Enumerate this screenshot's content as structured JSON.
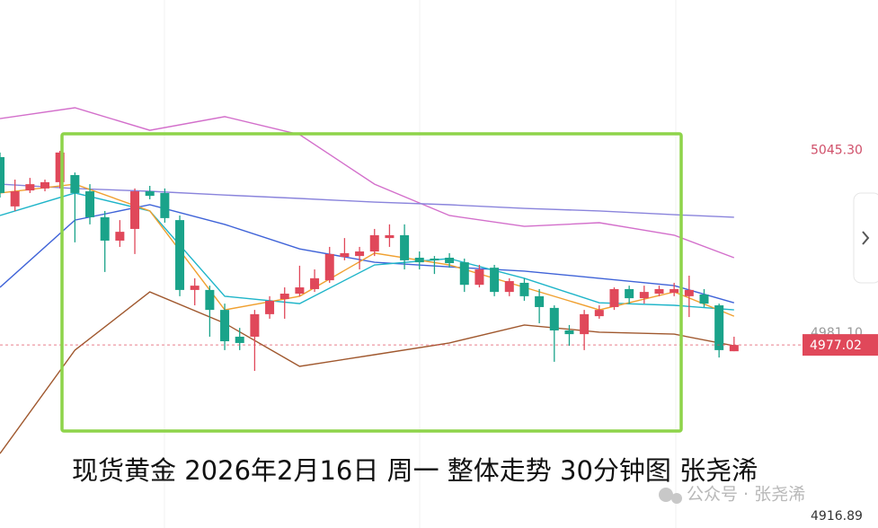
{
  "chart_data": {
    "type": "candlestick",
    "caption": "现货黄金 2026年2月16日 周一 整体走势 30分钟图 张尧浠",
    "watermark": "公众号 · 张尧浠",
    "up_color": "#e0485a",
    "down_color": "#1aa38a",
    "open": [
      5042.9,
      5025.6,
      5031.2,
      5031.9,
      5034.1,
      5036.6,
      5030.9,
      5021.8,
      5013.6,
      5017.7,
      5030.9,
      5030.3,
      5020.8,
      4996.3,
      4996.3,
      4989.3,
      4979.9,
      4979.9,
      4987.8,
      4993.1,
      4995.0,
      4996.6,
      4999.7,
      5007.9,
      5008.2,
      5009.8,
      5014.5,
      5015.5,
      5007.6,
      5007.3,
      5007.6,
      5006.0,
      4998.1,
      5004.1,
      4995.6,
      4998.8,
      4994.1,
      4990.0,
      4982.1,
      4980.8,
      4987.1,
      4990.3,
      4996.6,
      4993.4,
      4995.0,
      4995.3,
      4994.1,
      4994.7,
      4990.9,
      4974.8
    ],
    "high": [
      5044.5,
      5035.0,
      5035.6,
      5035.0,
      5045.1,
      5037.5,
      5033.4,
      5024.0,
      5020.8,
      5031.9,
      5032.8,
      5031.9,
      5022.4,
      5000.4,
      4997.8,
      4991.5,
      4983.0,
      4989.3,
      4994.1,
      4997.2,
      5004.8,
      5003.5,
      5011.4,
      5014.5,
      5011.4,
      5017.7,
      5019.3,
      5019.3,
      5009.8,
      5008.2,
      5009.2,
      5007.3,
      5005.1,
      5005.1,
      5000.4,
      5000.4,
      4996.6,
      4990.9,
      4984.0,
      4989.3,
      4990.9,
      4997.2,
      4997.8,
      4997.8,
      4997.8,
      4998.8,
      5001.3,
      4996.6,
      4991.5,
      4979.9
    ],
    "low": [
      5028.7,
      5024.0,
      5030.3,
      5030.9,
      5031.9,
      5013.0,
      5019.3,
      5002.6,
      5011.4,
      5008.9,
      5028.1,
      5019.9,
      4994.1,
      4990.9,
      4979.9,
      4975.2,
      4975.2,
      4967.9,
      4986.2,
      4986.2,
      4994.1,
      4995.6,
      4998.8,
      5006.7,
      5003.5,
      5008.2,
      5011.4,
      5003.5,
      5003.5,
      5001.9,
      5004.1,
      4995.6,
      4997.2,
      4994.1,
      4994.1,
      4992.5,
      4984.6,
      4971.1,
      4976.7,
      4975.2,
      4986.2,
      4989.3,
      4991.5,
      4991.5,
      4994.1,
      4994.1,
      4986.8,
      4990.3,
      4972.6,
      4974.8
    ],
    "close": [
      5030.3,
      5030.9,
      5033.4,
      5034.1,
      5044.5,
      5030.3,
      5021.8,
      5013.6,
      5016.7,
      5030.9,
      5029.3,
      5021.5,
      4996.3,
      4997.8,
      4989.3,
      4978.3,
      4977.7,
      4987.8,
      4992.5,
      4995.0,
      4997.2,
      5000.4,
      5008.9,
      5009.2,
      5009.8,
      5015.5,
      5015.5,
      5006.7,
      5006.0,
      5006.7,
      5005.7,
      4998.1,
      5003.5,
      4995.6,
      4999.4,
      4994.1,
      4990.3,
      4982.1,
      4980.8,
      4987.8,
      4989.3,
      4996.6,
      4993.4,
      4995.6,
      4996.6,
      4996.6,
      4996.3,
      4991.5,
      4975.2,
      4977.0
    ],
    "lines": [
      {
        "color": "#d36fcb",
        "x": [
          0,
          5,
          10,
          15,
          20,
          25,
          30,
          35,
          40,
          45,
          49
        ],
        "values": [
          5056.4,
          5060.2,
          5052.3,
          5057.1,
          5050.8,
          5033.4,
          5022.4,
          5018.6,
          5019.9,
          5015.5,
          5007.6
        ]
      },
      {
        "color": "#a0582e",
        "x": [
          0,
          5,
          10,
          15,
          20,
          25,
          30,
          35,
          40,
          45,
          49
        ],
        "values": [
          4938.9,
          4975.2,
          4995.6,
          4984.6,
          4969.5,
          4973.6,
          4977.7,
          4984.0,
          4981.5,
          4980.8,
          4976.7
        ]
      },
      {
        "color": "#3f63d8",
        "x": [
          0,
          5,
          10,
          15,
          20,
          25,
          30,
          35,
          40,
          45,
          49
        ],
        "values": [
          4997.2,
          5020.8,
          5026.2,
          5019.3,
          5010.7,
          5006.0,
          5004.4,
          5002.9,
          5000.4,
          4997.8,
          4991.8
        ]
      },
      {
        "color": "#8a84dc",
        "x": [
          0,
          5,
          10,
          15,
          20,
          25,
          30,
          35,
          40,
          45,
          49
        ],
        "values": [
          5033.4,
          5031.9,
          5030.9,
          5029.6,
          5028.4,
          5027.1,
          5026.2,
          5024.9,
          5024.0,
          5022.7,
          5021.8
        ]
      },
      {
        "color": "#1fb5c9",
        "x": [
          0,
          5,
          10,
          15,
          20,
          25,
          30,
          35,
          40,
          45,
          49
        ],
        "values": [
          5022.4,
          5030.3,
          5024.0,
          4994.1,
          4991.5,
          5005.1,
          5007.3,
          5000.4,
          4991.8,
          4990.9,
          4989.3
        ]
      },
      {
        "color": "#f0a030",
        "x": [
          0,
          5,
          10,
          15,
          20,
          25,
          30,
          35,
          40,
          45,
          49
        ],
        "values": [
          5030.3,
          5033.4,
          5024.0,
          4989.3,
          4994.1,
          5009.2,
          5005.1,
          4997.2,
          4989.3,
          4995.6,
          4987.1
        ]
      }
    ],
    "ylim": [
      4912.8,
      5098
    ],
    "yticks": [
      {
        "value": 5045.3,
        "label": "5045.30"
      },
      {
        "value": 4981.1,
        "label": "4981.10"
      },
      4916.89
    ],
    "ytick_colors": [
      "#d0506a",
      "#999999",
      "#333333"
    ],
    "last_price": 4977.02,
    "last_price_color": "#e0485a"
  }
}
